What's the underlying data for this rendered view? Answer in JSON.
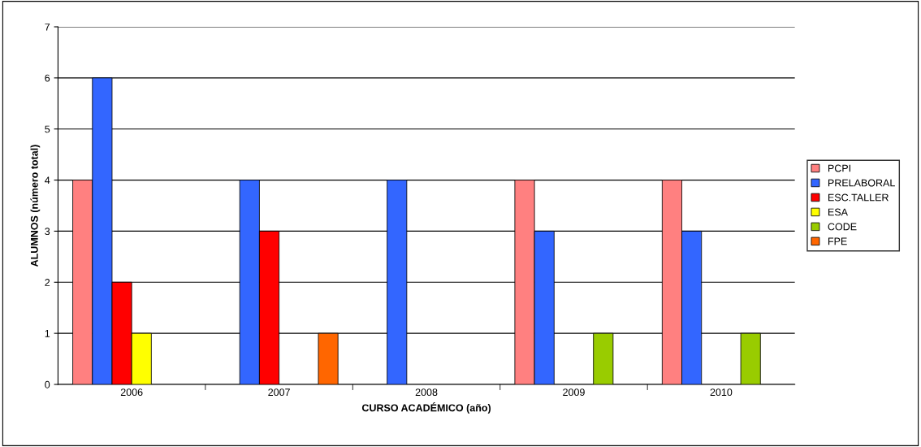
{
  "chart_data": {
    "type": "bar",
    "xlabel": "CURSO ACADÉMICO (año)",
    "ylabel": "ALUMNOS (número total)",
    "categories": [
      "2006",
      "2007",
      "2008",
      "2009",
      "2010"
    ],
    "series": [
      {
        "name": "PCPI",
        "color": "#ff8080",
        "values": [
          4,
          null,
          null,
          4,
          4
        ]
      },
      {
        "name": "PRELABORAL",
        "color": "#3366ff",
        "values": [
          6,
          4,
          4,
          3,
          3
        ]
      },
      {
        "name": "ESC.TALLER",
        "color": "#ff0000",
        "values": [
          2,
          3,
          null,
          null,
          null
        ]
      },
      {
        "name": "ESA",
        "color": "#ffff00",
        "values": [
          1,
          null,
          null,
          null,
          null
        ]
      },
      {
        "name": "CODE",
        "color": "#99cc00",
        "values": [
          null,
          null,
          null,
          1,
          1
        ]
      },
      {
        "name": "FPE",
        "color": "#ff6600",
        "values": [
          null,
          1,
          null,
          null,
          null
        ]
      }
    ],
    "ylim": [
      0,
      7
    ],
    "yticks": [
      0,
      1,
      2,
      3,
      4,
      5,
      6,
      7
    ],
    "grid": "y",
    "legend": "right"
  }
}
